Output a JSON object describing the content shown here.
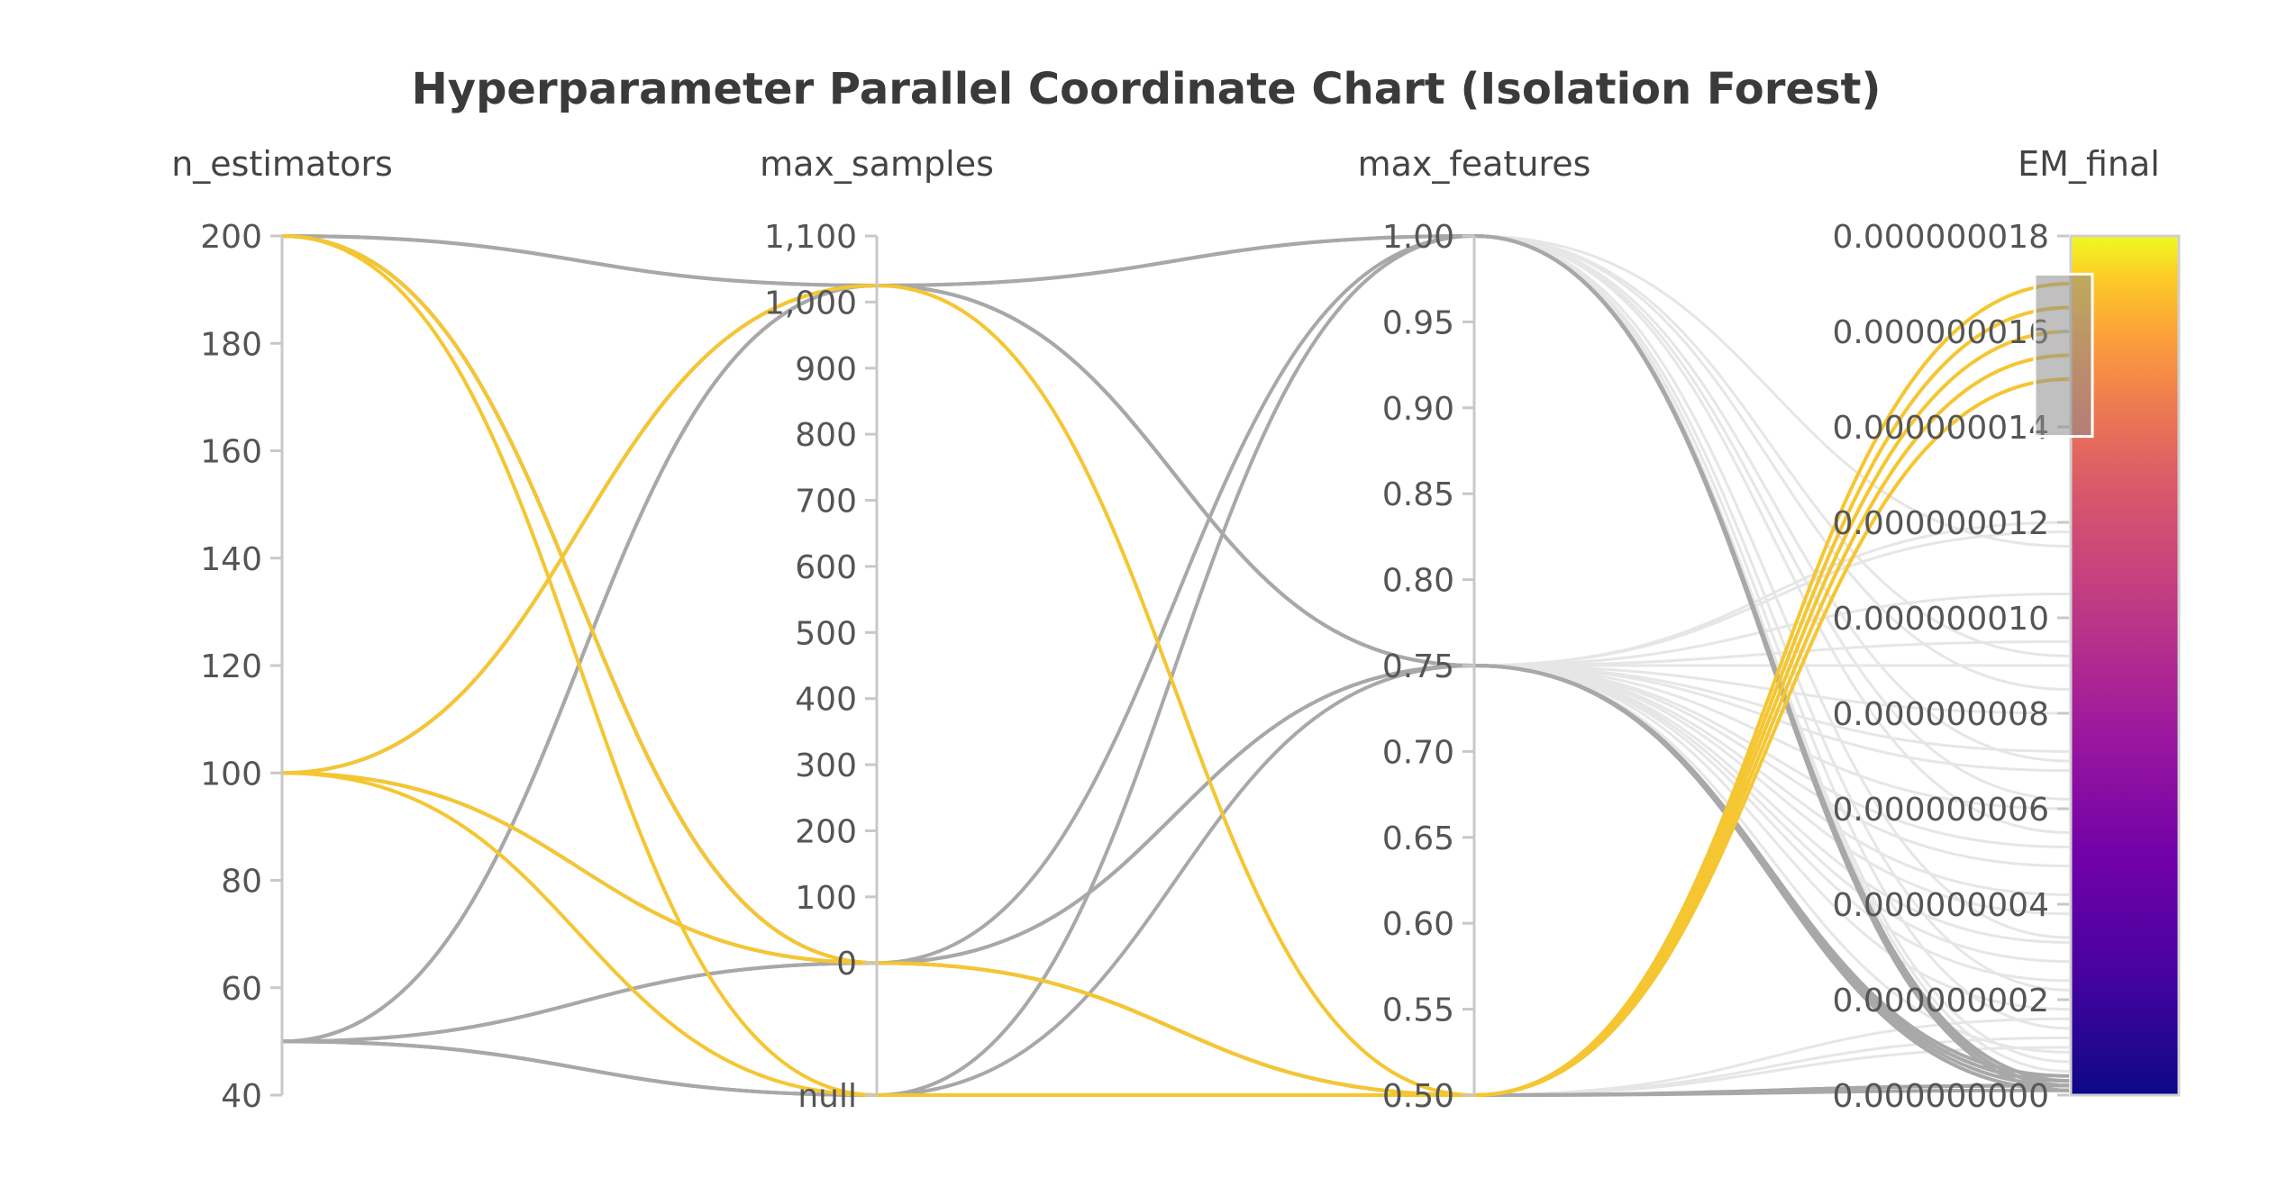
{
  "chart_data": {
    "type": "parallel_coordinates",
    "title": "Hyperparameter Parallel Coordinate Chart (Isolation Forest)",
    "axes": [
      {
        "name": "n_estimators",
        "min": 40,
        "max": 200,
        "ticks": [
          {
            "v": 40,
            "label": "40"
          },
          {
            "v": 60,
            "label": "60"
          },
          {
            "v": 80,
            "label": "80"
          },
          {
            "v": 100,
            "label": "100"
          },
          {
            "v": 120,
            "label": "120"
          },
          {
            "v": 140,
            "label": "140"
          },
          {
            "v": 160,
            "label": "160"
          },
          {
            "v": 180,
            "label": "180"
          },
          {
            "v": 200,
            "label": "200"
          }
        ]
      },
      {
        "name": "max_samples",
        "min": -200,
        "max": 1100,
        "ticks": [
          {
            "v": -200,
            "label": "null"
          },
          {
            "v": 0,
            "label": "0"
          },
          {
            "v": 100,
            "label": "100"
          },
          {
            "v": 200,
            "label": "200"
          },
          {
            "v": 300,
            "label": "300"
          },
          {
            "v": 400,
            "label": "400"
          },
          {
            "v": 500,
            "label": "500"
          },
          {
            "v": 600,
            "label": "600"
          },
          {
            "v": 700,
            "label": "700"
          },
          {
            "v": 800,
            "label": "800"
          },
          {
            "v": 900,
            "label": "900"
          },
          {
            "v": 1000,
            "label": "1,000"
          },
          {
            "v": 1100,
            "label": "1,100"
          }
        ]
      },
      {
        "name": "max_features",
        "min": 0.5,
        "max": 1.0,
        "ticks": [
          {
            "v": 0.5,
            "label": "0.50"
          },
          {
            "v": 0.55,
            "label": "0.55"
          },
          {
            "v": 0.6,
            "label": "0.60"
          },
          {
            "v": 0.65,
            "label": "0.65"
          },
          {
            "v": 0.7,
            "label": "0.70"
          },
          {
            "v": 0.75,
            "label": "0.75"
          },
          {
            "v": 0.8,
            "label": "0.80"
          },
          {
            "v": 0.85,
            "label": "0.85"
          },
          {
            "v": 0.9,
            "label": "0.90"
          },
          {
            "v": 0.95,
            "label": "0.95"
          },
          {
            "v": 1.0,
            "label": "1.00"
          }
        ]
      },
      {
        "name": "EM_final",
        "min": 0,
        "max": 1.8e-08,
        "ticks": [
          {
            "v": 0,
            "label": "0.000000000"
          },
          {
            "v": 2e-09,
            "label": "0.000000002"
          },
          {
            "v": 4e-09,
            "label": "0.000000004"
          },
          {
            "v": 6e-09,
            "label": "0.000000006"
          },
          {
            "v": 8e-09,
            "label": "0.000000008"
          },
          {
            "v": 1e-08,
            "label": "0.000000010"
          },
          {
            "v": 1.2e-08,
            "label": "0.000000012"
          },
          {
            "v": 1.4e-08,
            "label": "0.000000014"
          },
          {
            "v": 1.6e-08,
            "label": "0.000000016"
          },
          {
            "v": 1.8e-08,
            "label": "0.000000018"
          }
        ]
      }
    ],
    "selection": {
      "axis": "EM_final",
      "range": [
        1.38e-08,
        1.72e-08
      ]
    },
    "colorscale": {
      "name": "plasma",
      "min": 0,
      "max": 1.8e-08
    },
    "colors": {
      "highlight": "#f5c631",
      "selected_gray": "#a8a8a8",
      "background_gray": "#e6e6e6"
    },
    "runs": [
      {
        "v": [
          200,
          1025,
          1.0,
          2e-10
        ],
        "group": "mid"
      },
      {
        "v": [
          200,
          1025,
          1.0,
          3e-10
        ],
        "group": "mid"
      },
      {
        "v": [
          200,
          0,
          0.5,
          1e-10
        ],
        "group": "mid"
      },
      {
        "v": [
          200,
          0,
          0.5,
          2e-10
        ],
        "group": "mid"
      },
      {
        "v": [
          200,
          0,
          0.5,
          1.7e-08
        ],
        "group": "sel"
      },
      {
        "v": [
          200,
          -200,
          0.5,
          1.55e-08
        ],
        "group": "sel"
      },
      {
        "v": [
          100,
          1025,
          0.5,
          1.65e-08
        ],
        "group": "sel"
      },
      {
        "v": [
          100,
          0,
          0.5,
          1.6e-08
        ],
        "group": "sel"
      },
      {
        "v": [
          100,
          -200,
          0.5,
          1.5e-08
        ],
        "group": "sel"
      },
      {
        "v": [
          100,
          1025,
          0.75,
          3e-10
        ],
        "group": "mid"
      },
      {
        "v": [
          100,
          0,
          0.75,
          2e-10
        ],
        "group": "mid"
      },
      {
        "v": [
          50,
          1025,
          0.75,
          1e-10
        ],
        "group": "mid"
      },
      {
        "v": [
          50,
          1025,
          0.75,
          4e-10
        ],
        "group": "mid"
      },
      {
        "v": [
          50,
          0,
          1.0,
          2e-10
        ],
        "group": "mid"
      },
      {
        "v": [
          50,
          0,
          0.75,
          1e-10
        ],
        "group": "mid"
      },
      {
        "v": [
          50,
          -200,
          1.0,
          1e-10
        ],
        "group": "mid"
      },
      {
        "v": [
          50,
          -200,
          0.75,
          3e-10
        ],
        "group": "mid"
      },
      {
        "v": [
          50,
          -200,
          0.5,
          2e-10
        ],
        "group": "mid"
      }
    ],
    "background_runs": [
      {
        "v": [
          200,
          1025,
          0.75,
          1.2e-08
        ]
      },
      {
        "v": [
          200,
          1025,
          0.75,
          1.05e-08
        ]
      },
      {
        "v": [
          200,
          1025,
          0.75,
          9e-09
        ]
      },
      {
        "v": [
          200,
          1025,
          0.75,
          8e-09
        ]
      },
      {
        "v": [
          200,
          1025,
          0.75,
          9.5e-09
        ]
      },
      {
        "v": [
          200,
          1025,
          0.75,
          6.8e-09
        ]
      },
      {
        "v": [
          100,
          1025,
          0.75,
          1.18e-08
        ]
      },
      {
        "v": [
          100,
          1025,
          0.75,
          7.2e-09
        ]
      },
      {
        "v": [
          100,
          1025,
          0.75,
          6e-09
        ]
      },
      {
        "v": [
          100,
          1025,
          0.75,
          4.2e-09
        ]
      },
      {
        "v": [
          100,
          1025,
          1.0,
          9.2e-09
        ]
      },
      {
        "v": [
          100,
          1025,
          1.0,
          6.2e-09
        ]
      },
      {
        "v": [
          200,
          1025,
          1.0,
          1.15e-08
        ]
      },
      {
        "v": [
          200,
          1025,
          1.0,
          7e-09
        ]
      },
      {
        "v": [
          50,
          1025,
          1.0,
          8.5e-09
        ]
      },
      {
        "v": [
          50,
          1025,
          0.75,
          5.2e-09
        ]
      },
      {
        "v": [
          50,
          1025,
          0.75,
          3.8e-09
        ]
      },
      {
        "v": [
          50,
          1025,
          1.0,
          5.5e-09
        ]
      },
      {
        "v": [
          100,
          1025,
          0.75,
          3.2e-09
        ]
      },
      {
        "v": [
          200,
          1025,
          0.75,
          2.8e-09
        ]
      },
      {
        "v": [
          100,
          1025,
          1.0,
          2.2e-09
        ]
      },
      {
        "v": [
          50,
          1025,
          0.75,
          2.4e-09
        ]
      },
      {
        "v": [
          200,
          1025,
          0.75,
          1.8e-09
        ]
      },
      {
        "v": [
          100,
          1025,
          1.0,
          1.4e-09
        ]
      },
      {
        "v": [
          50,
          0,
          0.5,
          1.6e-09
        ]
      },
      {
        "v": [
          100,
          0,
          0.5,
          1.2e-09
        ]
      },
      {
        "v": [
          200,
          -200,
          0.5,
          1e-09
        ]
      },
      {
        "v": [
          100,
          1025,
          0.75,
          9e-10
        ]
      },
      {
        "v": [
          200,
          1025,
          1.0,
          7e-10
        ]
      },
      {
        "v": [
          50,
          1025,
          1.0,
          5e-10
        ]
      },
      {
        "v": [
          100,
          1025,
          0.75,
          4.8e-09
        ]
      },
      {
        "v": [
          200,
          1025,
          1.0,
          3.3e-09
        ]
      }
    ]
  }
}
